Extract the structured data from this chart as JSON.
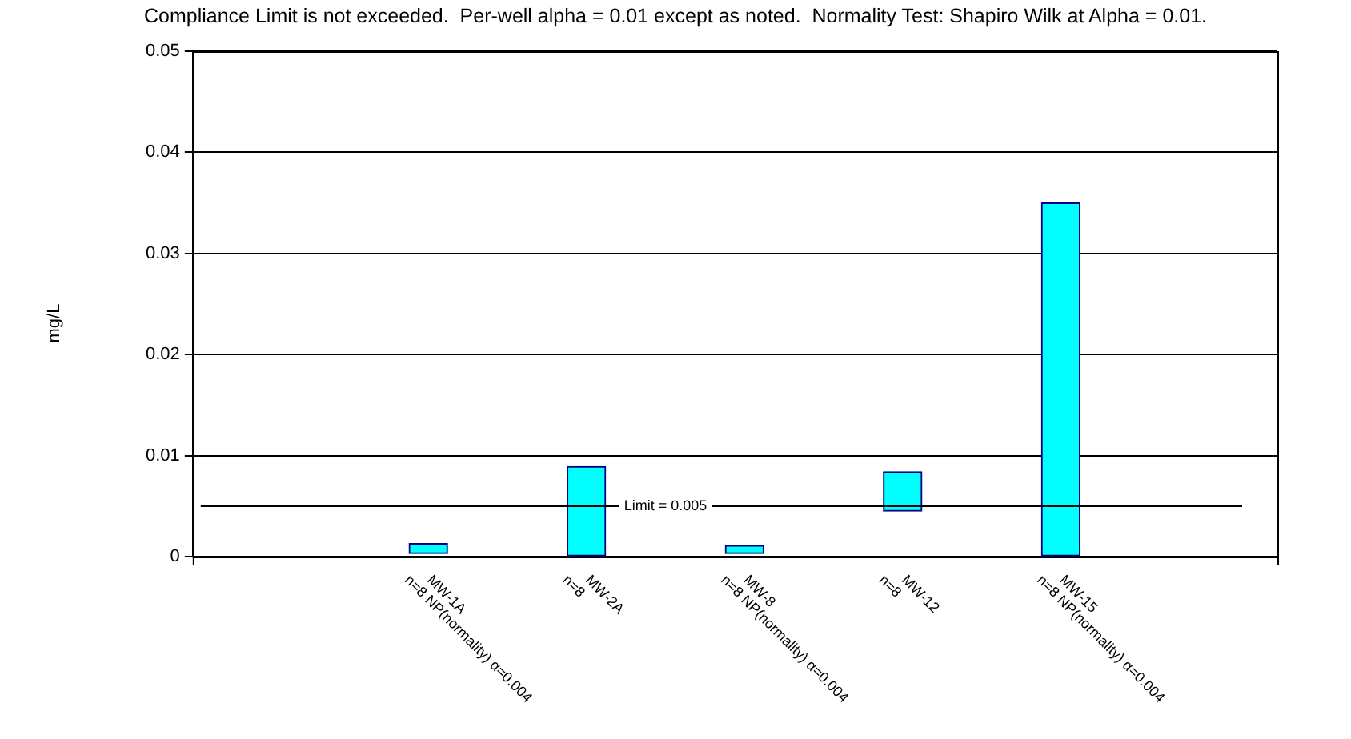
{
  "chart_data": {
    "type": "bar",
    "title": "Compliance Limit is not exceeded.  Per-well alpha = 0.01 except as noted.  Normality Test: Shapiro Wilk at Alpha = 0.01.",
    "ylabel": "mg/L",
    "categories": [
      "MW-1A\nn=8 NP(normality) α=0.004",
      "MW-2A\nn=8",
      "MW-8\nn=8 NP(normality) α=0.004",
      "MW-12\nn=8",
      "MW-15\nn=8 NP(normality) α=0.004"
    ],
    "base": [
      0.0003,
      0,
      0.0003,
      0.0045,
      0
    ],
    "values": [
      0.001,
      0.0089,
      0.0008,
      0.0039,
      0.035
    ],
    "color": "#00ffff",
    "ylim": [
      0,
      0.05
    ],
    "yticks": [
      0,
      0.01,
      0.02,
      0.03,
      0.04,
      0.05
    ],
    "grid": "y",
    "legend": false,
    "ref_lines": [
      {
        "axis": "y",
        "value": 0.005,
        "label": "Limit = 0.005",
        "color": "#000000"
      }
    ]
  }
}
